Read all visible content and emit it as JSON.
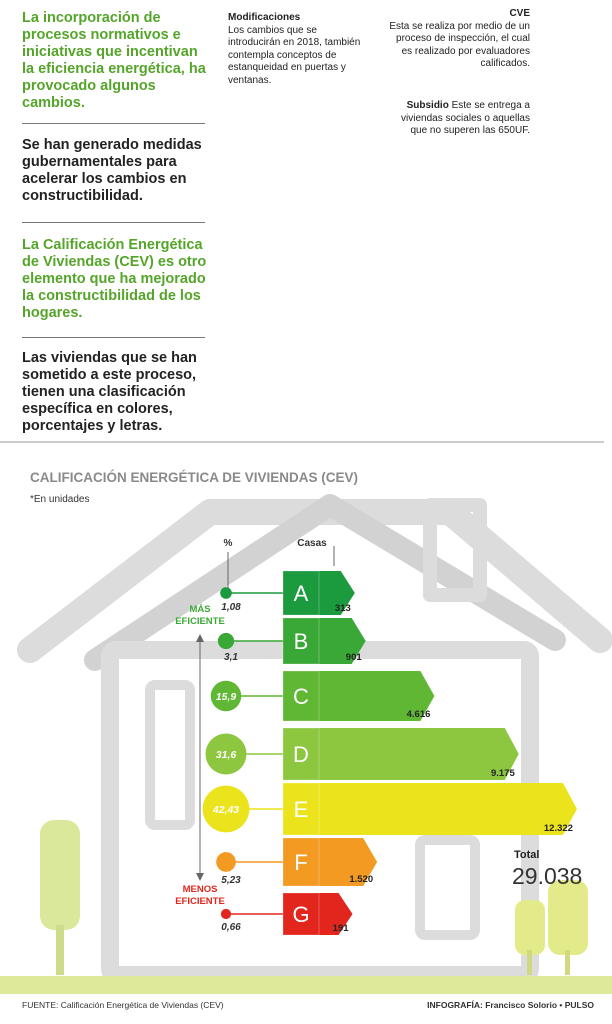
{
  "left_column": [
    "La incorporación de procesos normativos e iniciativas que incentivan la eficiencia energética, ha provocado algunos cambios.",
    "Se han generado medidas gubernamentales para acelerar los cambios en constructibilidad.",
    "La Calificación Energética de Viviendas (CEV) es otro elemento que ha mejorado la constructibilidad de los hogares.",
    "Las viviendas que se han sometido a este proceso, tienen una clasificación específica en colores, porcentajes y letras."
  ],
  "modificaciones": {
    "title": "Modificaciones",
    "body": "Los cambios que se introducirán en 2018, también contempla conceptos de estanqueidad en puertas y ventanas."
  },
  "cve": {
    "title": "CVE",
    "body": "Esta se realiza por medio de un proceso de inspección, el cual es realizado por evaluadores calificados."
  },
  "subsidio": {
    "title": "Subsidio",
    "body": "Este se entrega a viviendas sociales o aquellas que no superen las 650UF."
  },
  "chart_data": {
    "type": "bar",
    "title": "CALIFICACIÓN ENERGÉTICA DE VIVIENDAS (CEV)",
    "subtitle": "*En unidades",
    "categories": [
      "A",
      "B",
      "C",
      "D",
      "E",
      "F",
      "G"
    ],
    "colors": [
      "#1c9a3e",
      "#3aa836",
      "#5fb733",
      "#8dc63f",
      "#ebe41c",
      "#f29a22",
      "#e2261d"
    ],
    "series": [
      {
        "name": "Casas",
        "values": [
          313,
          901,
          4616,
          9175,
          12322,
          1520,
          191
        ],
        "value_labels": [
          "313",
          "901",
          "4.616",
          "9.175",
          "12.322",
          "1.520",
          "191"
        ]
      },
      {
        "name": "%",
        "values": [
          1.08,
          3.1,
          15.9,
          31.6,
          42.43,
          5.23,
          0.66
        ],
        "value_labels": [
          "1,08",
          "3,1",
          "15,9",
          "31,6",
          "42,43",
          "5,23",
          "0,66"
        ]
      }
    ],
    "annotations": [
      "MÁS EFICIENTE",
      "MENOS EFICIENTE"
    ],
    "total": {
      "label": "Total",
      "value": 29038,
      "value_label": "29.038"
    },
    "source": "FUENTE: Calificación Energética de Viviendas (CEV)",
    "credit": "INFOGRAFÍA: Francisco Solorio • PULSO"
  }
}
